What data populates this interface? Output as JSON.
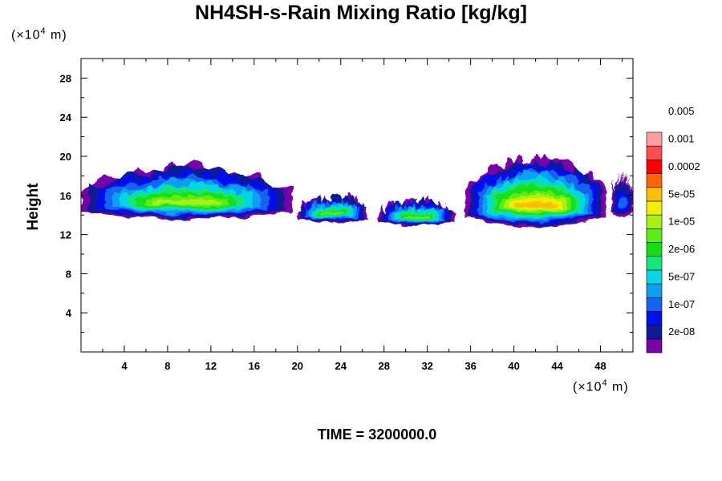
{
  "chart_data": {
    "type": "heatmap",
    "title": "NH4SH-s-Rain Mixing Ratio [kg/kg]",
    "xlabel": "",
    "ylabel": "Height",
    "x_unit": "(×10⁴ m)",
    "y_unit": "(×10⁴ m)",
    "xlim": [
      0,
      51
    ],
    "ylim": [
      0,
      30
    ],
    "xticks": [
      4,
      8,
      12,
      16,
      20,
      24,
      28,
      32,
      36,
      40,
      44,
      48
    ],
    "yticks": [
      4,
      8,
      12,
      16,
      20,
      24,
      28
    ],
    "colorbar": {
      "labels": [
        "2e-08",
        "1e-07",
        "5e-07",
        "2e-06",
        "1e-05",
        "5e-05",
        "0.0002",
        "0.001",
        "0.005"
      ],
      "colors": [
        "#7700aa",
        "#101a96",
        "#0010ee",
        "#1464f0",
        "#0aa0f0",
        "#06d6e6",
        "#18e67a",
        "#12e012",
        "#5aee12",
        "#a8f012",
        "#f0f000",
        "#ffbe00",
        "#ff6400",
        "#ff0000",
        "#ff4c4c",
        "#ff9e9e"
      ]
    },
    "clouds": [
      {
        "x0": 0.0,
        "x1": 19.5,
        "base": 13.6,
        "top": 19.0,
        "peak_level": 9
      },
      {
        "x0": 20.0,
        "x1": 26.5,
        "base": 13.3,
        "top": 16.0,
        "peak_level": 8
      },
      {
        "x0": 27.5,
        "x1": 34.5,
        "base": 13.0,
        "top": 15.5,
        "peak_level": 8
      },
      {
        "x0": 35.5,
        "x1": 48.5,
        "base": 12.8,
        "top": 19.8,
        "peak_level": 11
      },
      {
        "x0": 49.0,
        "x1": 51.0,
        "base": 13.8,
        "top": 18.0,
        "peak_level": 3
      }
    ]
  },
  "footer": {
    "time_label": "TIME = 3200000.0"
  }
}
